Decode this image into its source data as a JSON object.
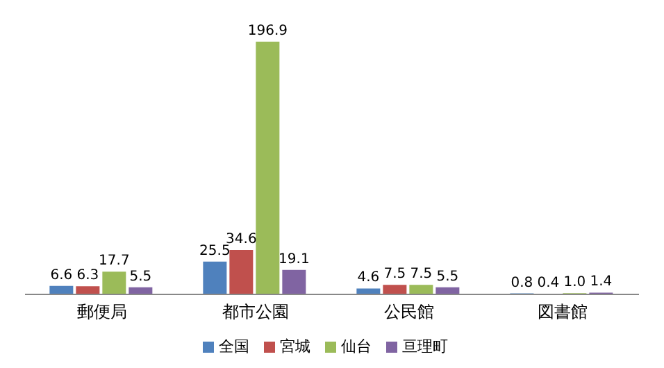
{
  "chart_data": {
    "type": "bar",
    "categories": [
      "郵便局",
      "都市公園",
      "公民館",
      "図書館"
    ],
    "series": [
      {
        "name": "全国",
        "color": "#4f81bd",
        "values": [
          6.6,
          25.5,
          4.6,
          0.8
        ],
        "value_labels": [
          "6.6",
          "25.5",
          "4.6",
          "0.8"
        ]
      },
      {
        "name": "宮城",
        "color": "#c0504d",
        "values": [
          6.3,
          34.6,
          7.5,
          0.4
        ],
        "value_labels": [
          "6.3",
          "34.6",
          "7.5",
          "0.4"
        ]
      },
      {
        "name": "仙台",
        "color": "#9bbb59",
        "values": [
          17.7,
          196.9,
          7.5,
          1.0
        ],
        "value_labels": [
          "17.7",
          "196.9",
          "7.5",
          "1.0"
        ]
      },
      {
        "name": "亘理町",
        "color": "#8064a2",
        "values": [
          5.5,
          19.1,
          5.5,
          1.4
        ],
        "value_labels": [
          "5.5",
          "19.1",
          "5.5",
          "1.4"
        ]
      }
    ],
    "legend": "bottom",
    "grid": false
  }
}
